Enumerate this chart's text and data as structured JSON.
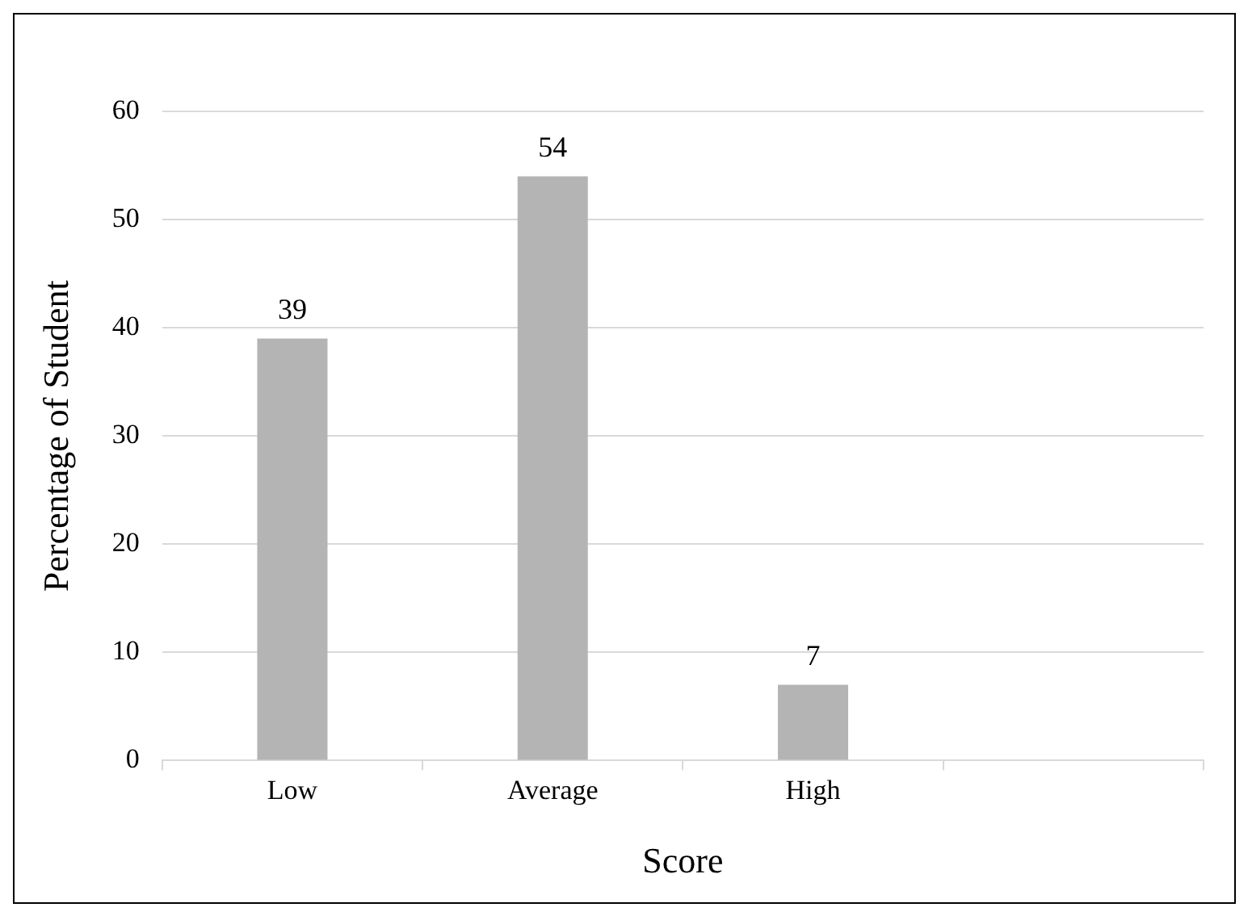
{
  "chart_data": {
    "type": "bar",
    "xlabel": "Score",
    "ylabel": "Percentage of Student",
    "categories": [
      "Low",
      "Average",
      "High",
      null
    ],
    "values": [
      39,
      54,
      7,
      null
    ],
    "color": "#b4b4b4",
    "ylim": [
      0,
      60
    ],
    "yticks": [
      0,
      10,
      20,
      30,
      40,
      50,
      60
    ],
    "grid": "y",
    "data_labels": true,
    "legend": false
  }
}
